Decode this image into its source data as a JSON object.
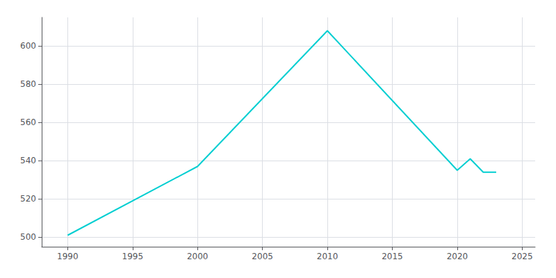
{
  "chart_data": {
    "type": "line",
    "x": [
      1990,
      2000,
      2010,
      2020,
      2021,
      2022,
      2023
    ],
    "values": [
      501,
      537,
      608,
      535,
      541,
      534,
      534
    ],
    "color": "#00CED1",
    "xlim": [
      1988,
      2026
    ],
    "ylim": [
      495,
      615
    ],
    "xticks": [
      1990,
      1995,
      2000,
      2005,
      2010,
      2015,
      2020,
      2025
    ],
    "yticks": [
      500,
      520,
      540,
      560,
      580,
      600
    ],
    "grid": true
  }
}
